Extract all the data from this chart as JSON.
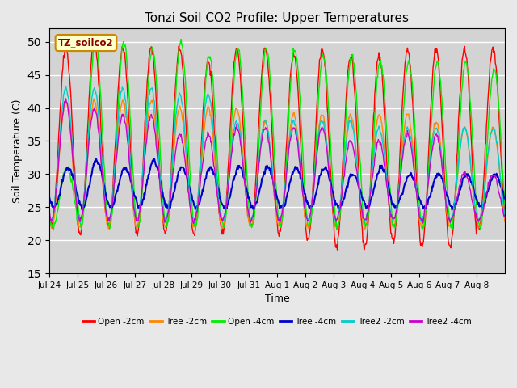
{
  "title": "Tonzi Soil CO2 Profile: Upper Temperatures",
  "xlabel": "Time",
  "ylabel": "Soil Temperature (C)",
  "ylim": [
    15,
    52
  ],
  "yticks": [
    15,
    20,
    25,
    30,
    35,
    40,
    45,
    50
  ],
  "annotation": "TZ_soilco2",
  "bg_color": "#e8e8e8",
  "plot_bg_color": "#d3d3d3",
  "series": {
    "Open -2cm": {
      "color": "#ff0000",
      "lw": 1.0
    },
    "Tree -2cm": {
      "color": "#ff8800",
      "lw": 1.0
    },
    "Open -4cm": {
      "color": "#00ee00",
      "lw": 1.0
    },
    "Tree -4cm": {
      "color": "#0000cc",
      "lw": 1.5
    },
    "Tree2 -2cm": {
      "color": "#00cccc",
      "lw": 1.0
    },
    "Tree2 -4cm": {
      "color": "#cc00cc",
      "lw": 1.0
    }
  },
  "xtick_labels": [
    "Jul 24",
    "Jul 25",
    "Jul 26",
    "Jul 27",
    "Jul 28",
    "Jul 29",
    "Jul 30",
    "Jul 31",
    "Aug 1",
    "Aug 2",
    "Aug 3",
    "Aug 4",
    "Aug 5",
    "Aug 6",
    "Aug 7",
    "Aug 8"
  ],
  "n_days": 16,
  "pts_per_day": 48
}
